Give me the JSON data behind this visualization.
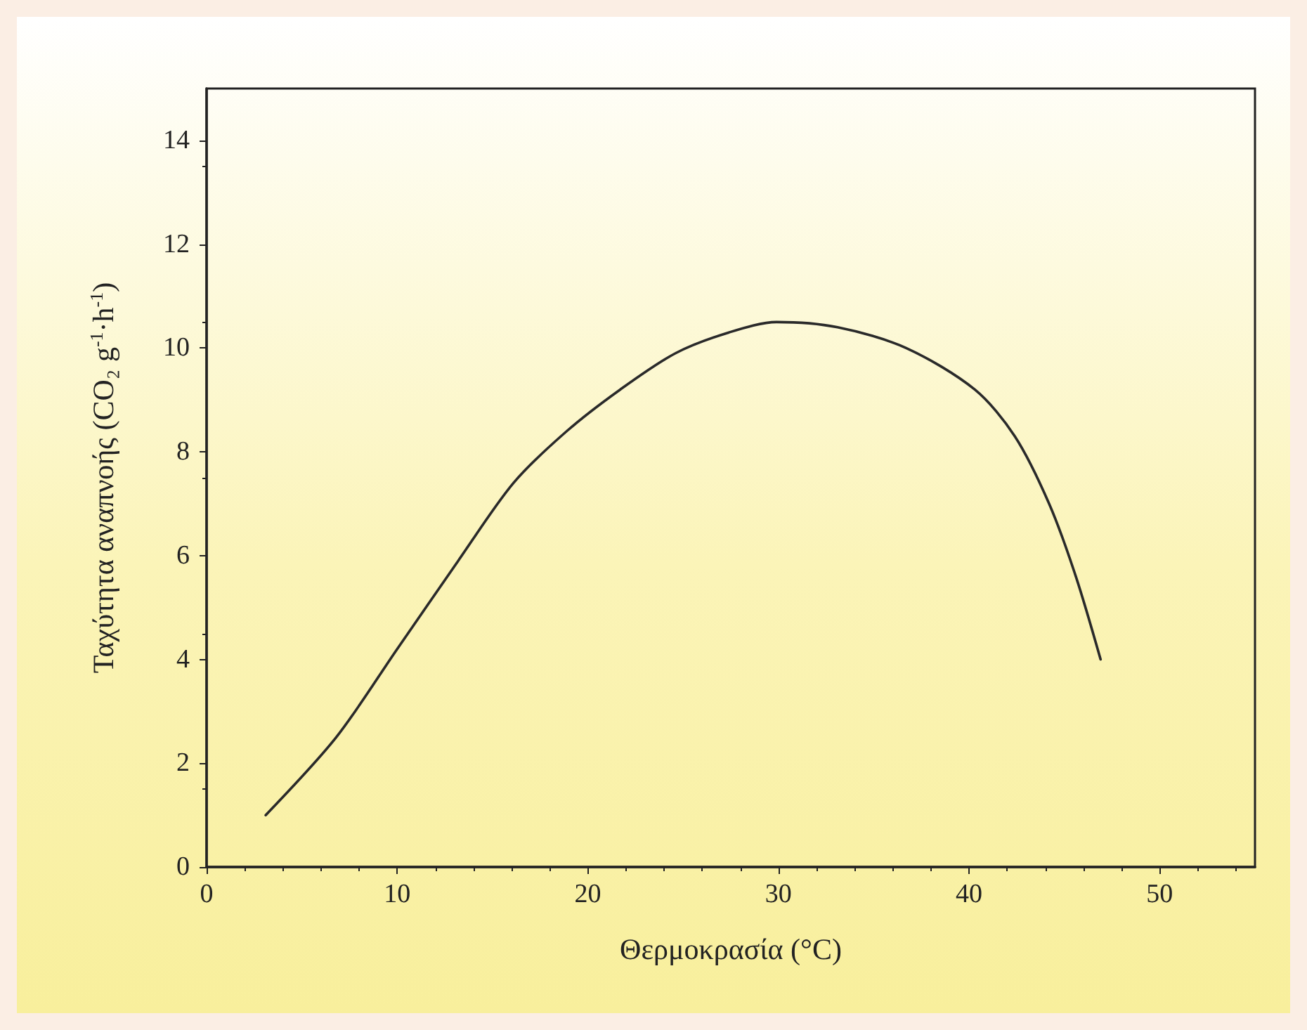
{
  "chart_data": {
    "type": "line",
    "xlabel": "Θερμοκρασία (°C)",
    "ylabel": "Ταχύτητα αναπνοής (CO₂ g$^{-1}$·h$^{-1}$)",
    "xlim": [
      0,
      55
    ],
    "xticks": [
      0,
      10,
      20,
      30,
      40,
      50
    ],
    "ylim": [
      0,
      15
    ],
    "yticks": [
      0,
      2,
      4,
      6,
      8,
      10,
      12,
      14
    ],
    "marker": "none",
    "line_style": "solid",
    "series": [
      {
        "color": "#2a2a2a",
        "x": [
          3.1,
          6.8,
          10,
          13.2,
          16.1,
          18.9,
          21.7,
          24.6,
          27.4,
          29.9,
          33.1,
          36.7,
          40.3,
          42.4,
          44.2,
          45.6,
          46.9
        ],
        "values": [
          1.0,
          2.5,
          4.2,
          5.9,
          7.4,
          8.4,
          9.2,
          9.9,
          10.3,
          10.5,
          10.4,
          10.0,
          9.2,
          8.3,
          7.0,
          5.6,
          4.0
        ]
      }
    ]
  }
}
